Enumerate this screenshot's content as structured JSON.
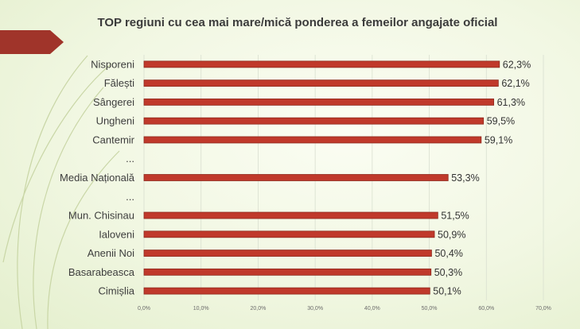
{
  "colors": {
    "bar": "#c0392b",
    "bar_stroke": "#8e2a1e",
    "arrow": "#a0342a",
    "grid": "#d9dfd0"
  },
  "chart_data": {
    "type": "bar",
    "orientation": "horizontal",
    "title": "TOP regiuni cu cea mai mare/mică ponderea a femeilor angajate oficial",
    "categories": [
      "Nisporeni",
      "Fălești",
      "Sângerei",
      "Ungheni",
      "Cantemir",
      "...",
      "Media Națională",
      "...",
      "Mun. Chisinau",
      "Ialoveni",
      "Anenii Noi",
      "Basarabeasca",
      "Cimișlia"
    ],
    "values": [
      62.3,
      62.1,
      61.3,
      59.5,
      59.1,
      null,
      53.3,
      null,
      51.5,
      50.9,
      50.4,
      50.3,
      50.1
    ],
    "value_labels": [
      "62,3%",
      "62,1%",
      "61,3%",
      "59,5%",
      "59,1%",
      "",
      "53,3%",
      "",
      "51,5%",
      "50,9%",
      "50,4%",
      "50,3%",
      "50,1%"
    ],
    "xlim": [
      0,
      70
    ],
    "x_ticks": [
      "0,0%",
      "10,0%",
      "20,0%",
      "30,0%",
      "40,0%",
      "50,0%",
      "60,0%",
      "70,0%"
    ],
    "grid": true,
    "legend": "none"
  }
}
